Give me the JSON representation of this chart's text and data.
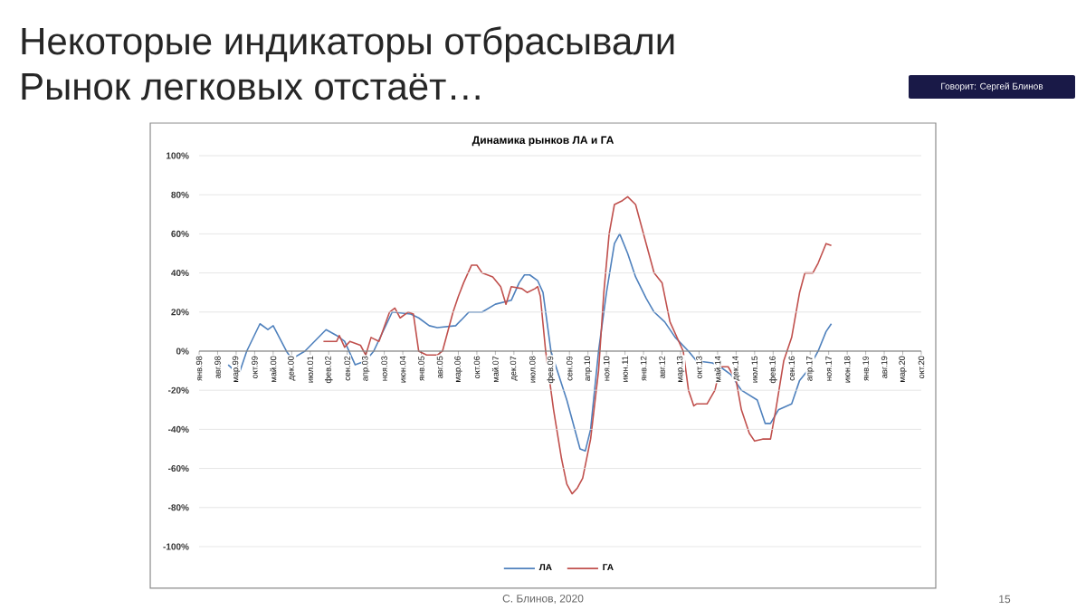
{
  "chart_data": {
    "type": "line",
    "title": "Динамика рынков ЛА и ГА",
    "annotations": [
      "Некоторые индикаторы отбрасывали",
      "Рынок легковых отстаёт…",
      "Говорит: Сергей Блинов",
      "С. Блинов, 2020",
      "15"
    ],
    "series": [
      {
        "name": "ЛА",
        "color": "#4f81bd",
        "x": [
          "1998-12",
          "1999-04",
          "1999-07",
          "1999-12",
          "2000-03",
          "2000-05",
          "2000-10",
          "2000-12",
          "2001-05",
          "2002-01",
          "2002-05",
          "2002-08",
          "2002-12",
          "2003-04",
          "2003-07",
          "2004-02",
          "2004-09",
          "2004-12",
          "2005-04",
          "2005-07",
          "2006-02",
          "2006-07",
          "2006-12",
          "2007-05",
          "2007-11",
          "2008-02",
          "2008-04",
          "2008-06",
          "2008-09",
          "2008-11",
          "2009-02",
          "2009-08",
          "2009-10",
          "2010-01",
          "2010-03",
          "2010-05",
          "2010-08",
          "2010-11",
          "2011-02",
          "2011-04",
          "2011-07",
          "2011-10",
          "2012-02",
          "2012-05",
          "2012-09",
          "2013-01",
          "2013-06",
          "2013-09",
          "2014-03",
          "2014-06",
          "2014-10",
          "2015-02",
          "2015-08",
          "2015-11",
          "2016-01",
          "2016-04",
          "2016-09",
          "2016-12",
          "2017-03",
          "2017-07",
          "2017-10",
          "2017-12"
        ],
        "values": [
          -7,
          -12,
          0,
          14,
          11,
          13,
          0,
          -4,
          0,
          11,
          8,
          5,
          -7,
          -5,
          0,
          20,
          19,
          17,
          13,
          12,
          13,
          20,
          20,
          24,
          26,
          35,
          39,
          39,
          36,
          30,
          0,
          -25,
          -35,
          -50,
          -51,
          -40,
          0,
          30,
          55,
          60,
          50,
          38,
          27,
          20,
          15,
          7,
          0,
          -5,
          -6,
          -8,
          -12,
          -20,
          -25,
          -37,
          -37,
          -30,
          -27,
          -15,
          -10,
          0,
          10,
          14
        ]
      },
      {
        "name": "ГА",
        "color": "#c0504d",
        "x": [
          "2001-12",
          "2002-05",
          "2002-06",
          "2002-08",
          "2002-10",
          "2003-02",
          "2003-04",
          "2003-06",
          "2003-09",
          "2004-01",
          "2004-03",
          "2004-05",
          "2004-08",
          "2004-10",
          "2004-12",
          "2005-03",
          "2005-07",
          "2005-09",
          "2006-01",
          "2006-03",
          "2006-05",
          "2006-08",
          "2006-10",
          "2006-12",
          "2007-04",
          "2007-07",
          "2007-09",
          "2007-11",
          "2008-03",
          "2008-05",
          "2008-08",
          "2008-09",
          "2008-10",
          "2008-12",
          "2009-03",
          "2009-06",
          "2009-08",
          "2009-10",
          "2009-12",
          "2010-02",
          "2010-05",
          "2010-08",
          "2010-10",
          "2010-12",
          "2011-02",
          "2011-05",
          "2011-07",
          "2011-10",
          "2012-02",
          "2012-05",
          "2012-08",
          "2012-11",
          "2013-04",
          "2013-06",
          "2013-08",
          "2013-09",
          "2014-01",
          "2014-04",
          "2014-06",
          "2014-09",
          "2014-12",
          "2015-02",
          "2015-05",
          "2015-07",
          "2015-10",
          "2016-01",
          "2016-03",
          "2016-06",
          "2016-09",
          "2016-12",
          "2017-02",
          "2017-05",
          "2017-07",
          "2017-10",
          "2017-12"
        ],
        "values": [
          5,
          5,
          8,
          2,
          5,
          3,
          -2,
          7,
          5,
          20,
          22,
          17,
          20,
          19,
          0,
          -2,
          -2,
          0,
          20,
          28,
          35,
          44,
          44,
          40,
          38,
          33,
          24,
          33,
          32,
          30,
          32,
          33,
          28,
          0,
          -30,
          -55,
          -68,
          -73,
          -70,
          -65,
          -45,
          -10,
          30,
          60,
          75,
          77,
          79,
          75,
          55,
          40,
          35,
          15,
          0,
          -20,
          -28,
          -27,
          -27,
          -20,
          -8,
          -8,
          -15,
          -30,
          -42,
          -46,
          -45,
          -45,
          -30,
          -5,
          7,
          30,
          40,
          40,
          45,
          55,
          54
        ]
      }
    ],
    "xlim": [
      "1998-01",
      "2020-10"
    ],
    "xticks": [
      {
        "value": "1998-01",
        "label": "янв.98"
      },
      {
        "value": "1998-08",
        "label": "авг.98"
      },
      {
        "value": "1999-03",
        "label": "мар.99"
      },
      {
        "value": "1999-10",
        "label": "окт.99"
      },
      {
        "value": "2000-05",
        "label": "май.00"
      },
      {
        "value": "2000-12",
        "label": "дек.00"
      },
      {
        "value": "2001-07",
        "label": "июл.01"
      },
      {
        "value": "2002-02",
        "label": "фев.02"
      },
      {
        "value": "2002-09",
        "label": "сен.02"
      },
      {
        "value": "2003-04",
        "label": "апр.03"
      },
      {
        "value": "2003-11",
        "label": "ноя.03"
      },
      {
        "value": "2004-06",
        "label": "июн.04"
      },
      {
        "value": "2005-01",
        "label": "янв.05"
      },
      {
        "value": "2005-08",
        "label": "авг.05"
      },
      {
        "value": "2006-03",
        "label": "мар.06"
      },
      {
        "value": "2006-10",
        "label": "окт.06"
      },
      {
        "value": "2007-05",
        "label": "май.07"
      },
      {
        "value": "2007-12",
        "label": "дек.07"
      },
      {
        "value": "2008-07",
        "label": "июл.08"
      },
      {
        "value": "2009-02",
        "label": "фев.09"
      },
      {
        "value": "2009-09",
        "label": "сен.09"
      },
      {
        "value": "2010-04",
        "label": "апр.10"
      },
      {
        "value": "2010-11",
        "label": "ноя.10"
      },
      {
        "value": "2011-06",
        "label": "июн.11"
      },
      {
        "value": "2012-01",
        "label": "янв.12"
      },
      {
        "value": "2012-08",
        "label": "авг.12"
      },
      {
        "value": "2013-03",
        "label": "мар.13"
      },
      {
        "value": "2013-10",
        "label": "окт.13"
      },
      {
        "value": "2014-05",
        "label": "май.14"
      },
      {
        "value": "2014-12",
        "label": "дек.14"
      },
      {
        "value": "2015-07",
        "label": "июл.15"
      },
      {
        "value": "2016-02",
        "label": "фев.16"
      },
      {
        "value": "2016-09",
        "label": "сен.16"
      },
      {
        "value": "2017-04",
        "label": "апр.17"
      },
      {
        "value": "2017-11",
        "label": "ноя.17"
      },
      {
        "value": "2018-06",
        "label": "июн.18"
      },
      {
        "value": "2019-01",
        "label": "янв.19"
      },
      {
        "value": "2019-08",
        "label": "авг.19"
      },
      {
        "value": "2020-03",
        "label": "мар.20"
      },
      {
        "value": "2020-10",
        "label": "окт.20"
      }
    ],
    "ylim": [
      -100,
      100
    ],
    "yticks": [
      {
        "value": -100,
        "label": "-100%"
      },
      {
        "value": -80,
        "label": "-80%"
      },
      {
        "value": -60,
        "label": "-60%"
      },
      {
        "value": -40,
        "label": "-40%"
      },
      {
        "value": -20,
        "label": "-20%"
      },
      {
        "value": 0,
        "label": "0%"
      },
      {
        "value": 20,
        "label": "20%"
      },
      {
        "value": 40,
        "label": "40%"
      },
      {
        "value": 60,
        "label": "60%"
      },
      {
        "value": 80,
        "label": "80%"
      },
      {
        "value": 100,
        "label": "100%"
      }
    ],
    "grid": "y",
    "legend": "bottom"
  }
}
